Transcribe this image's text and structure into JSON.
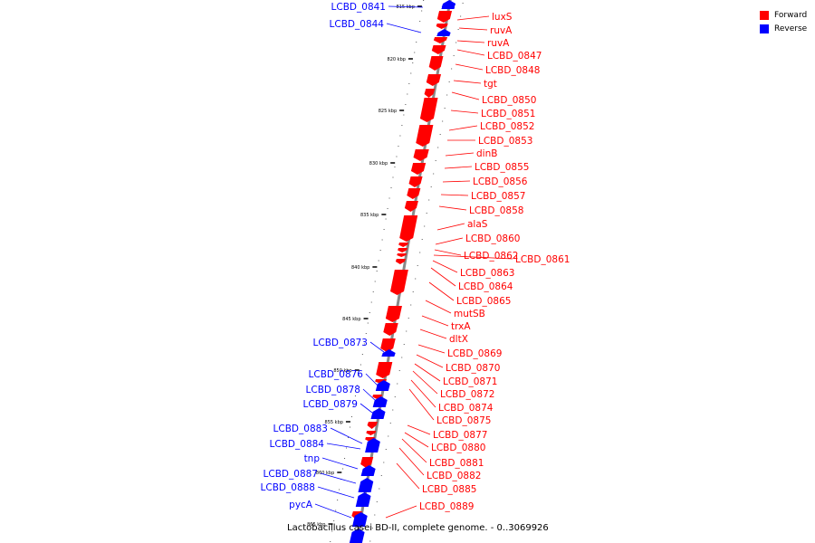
{
  "caption": "Lactobacillus casei BD-II, complete genome. - 0..3069926",
  "legend": [
    {
      "label": "Forward",
      "color": "#ff0000"
    },
    {
      "label": "Reverse",
      "color": "#0000ff"
    }
  ],
  "colors": {
    "forward": "#ff0000",
    "reverse": "#0000ff",
    "backbone": "#888888"
  },
  "ticks": [
    "815 kbp",
    "820 kbp",
    "825 kbp",
    "830 kbp",
    "835 kbp",
    "840 kbp",
    "845 kbp",
    "850 kbp",
    "855 kbp",
    "860 kbp",
    "865 kbp"
  ],
  "forward_genes": [
    "luxS",
    "ruvA",
    "ruvA",
    "LCBD_0847",
    "LCBD_0848",
    "tgt",
    "LCBD_0850",
    "LCBD_0851",
    "LCBD_0852",
    "LCBD_0853",
    "dinB",
    "LCBD_0855",
    "LCBD_0856",
    "LCBD_0857",
    "LCBD_0858",
    "alaS",
    "LCBD_0860",
    "LCBD_0862",
    "LCBD_0861",
    "LCBD_0863",
    "LCBD_0864",
    "LCBD_0865",
    "mutSB",
    "trxA",
    "dltX",
    "LCBD_0869",
    "LCBD_0870",
    "LCBD_0871",
    "LCBD_0872",
    "LCBD_0874",
    "LCBD_0875",
    "LCBD_0877",
    "LCBD_0880",
    "LCBD_0881",
    "LCBD_0882",
    "LCBD_0885",
    "LCBD_0889"
  ],
  "reverse_genes": [
    "LCBD_0841",
    "LCBD_0844",
    "LCBD_0873",
    "LCBD_0876",
    "LCBD_0878",
    "LCBD_0879",
    "LCBD_0883",
    "LCBD_0884",
    "tnp",
    "LCBD_0887",
    "LCBD_0888",
    "pycA"
  ]
}
